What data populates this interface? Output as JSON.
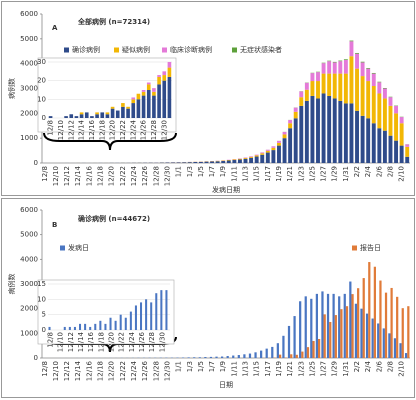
{
  "chart_data": [
    {
      "type": "stacked-bar",
      "label": "A",
      "title": "全部病例 (n=72314)",
      "ylabel": "病例数",
      "xlabel": "发病日期",
      "categories": [
        "12/8",
        null,
        "12/10",
        null,
        "12/12",
        null,
        "12/14",
        null,
        "12/16",
        null,
        "12/18",
        null,
        "12/20",
        null,
        "12/22",
        null,
        "12/24",
        null,
        "12/26",
        null,
        "12/28",
        null,
        "12/30",
        null,
        "1/1",
        null,
        "1/3",
        null,
        "1/5",
        null,
        "1/7",
        null,
        "1/9",
        null,
        "1/11",
        null,
        "1/13",
        null,
        "1/15",
        null,
        "1/17",
        null,
        "1/19",
        null,
        "1/21",
        null,
        "1/23",
        null,
        "1/25",
        null,
        "1/27",
        null,
        "1/29",
        null,
        "1/31",
        null,
        "2/2",
        null,
        "2/4",
        null,
        "2/6",
        null,
        "2/8",
        null,
        "2/10",
        null
      ],
      "ylim": [
        0,
        6000
      ],
      "yticks": [
        0,
        1000,
        2000,
        3000,
        4000,
        5000,
        6000
      ],
      "series": [
        {
          "name": "确诊病例",
          "color": "#2f4b8a",
          "values": [
            1,
            0,
            0,
            1,
            2,
            1,
            2,
            3,
            1,
            2,
            3,
            2,
            5,
            4,
            6,
            5,
            8,
            10,
            12,
            15,
            12,
            18,
            20,
            22,
            25,
            30,
            35,
            40,
            45,
            55,
            60,
            70,
            80,
            100,
            120,
            140,
            170,
            210,
            260,
            330,
            420,
            520,
            700,
            1000,
            1400,
            1800,
            2300,
            2500,
            2700,
            2600,
            2800,
            2700,
            2600,
            2500,
            2400,
            2400,
            2100,
            1900,
            1800,
            1600,
            1400,
            1300,
            1100,
            900,
            700,
            250
          ]
        },
        {
          "name": "疑似病例",
          "color": "#f2b705",
          "values": [
            0,
            0,
            0,
            0,
            0,
            0,
            1,
            0,
            0,
            1,
            0,
            1,
            1,
            0,
            2,
            1,
            2,
            3,
            2,
            3,
            2,
            4,
            3,
            5,
            5,
            6,
            7,
            8,
            10,
            12,
            14,
            16,
            18,
            20,
            25,
            30,
            35,
            40,
            50,
            60,
            70,
            90,
            110,
            150,
            200,
            260,
            350,
            450,
            600,
            700,
            800,
            900,
            1000,
            1100,
            1200,
            1900,
            1700,
            1600,
            1500,
            1500,
            1400,
            1300,
            1200,
            1100,
            900,
            400
          ]
        },
        {
          "name": "临床诊断病例",
          "color": "#e47ad8",
          "values": [
            0,
            0,
            0,
            0,
            0,
            0,
            0,
            0,
            0,
            0,
            0,
            0,
            0,
            0,
            0,
            0,
            1,
            0,
            1,
            1,
            2,
            1,
            2,
            3,
            3,
            3,
            4,
            4,
            5,
            5,
            6,
            7,
            8,
            10,
            12,
            15,
            18,
            22,
            28,
            35,
            45,
            60,
            80,
            100,
            130,
            170,
            230,
            280,
            320,
            360,
            420,
            500,
            450,
            500,
            550,
            600,
            600,
            550,
            500,
            500,
            450,
            400,
            350,
            300,
            250,
            100
          ]
        },
        {
          "name": "无症状感染者",
          "color": "#5da03a",
          "values": [
            0,
            0,
            0,
            0,
            0,
            0,
            0,
            0,
            0,
            0,
            0,
            0,
            0,
            0,
            0,
            0,
            0,
            0,
            0,
            0,
            0,
            0,
            0,
            0,
            0,
            0,
            0,
            0,
            0,
            0,
            0,
            0,
            0,
            0,
            0,
            0,
            0,
            0,
            0,
            1,
            1,
            2,
            3,
            4,
            5,
            6,
            8,
            10,
            12,
            15,
            18,
            20,
            22,
            25,
            28,
            30,
            30,
            28,
            25,
            25,
            22,
            20,
            18,
            15,
            12,
            5
          ]
        }
      ],
      "inset": {
        "categories": [
          "12/8",
          null,
          "12/10",
          null,
          "12/12",
          null,
          "12/14",
          null,
          "12/16",
          null,
          "12/18",
          null,
          "12/20",
          null,
          "12/22",
          null,
          "12/24",
          null,
          "12/26",
          null,
          "12/28",
          null,
          "12/30",
          null
        ],
        "ylim": [
          0,
          30
        ],
        "yticks": [
          0,
          10,
          20,
          30
        ]
      }
    },
    {
      "type": "bar",
      "label": "B",
      "title": "确诊病例 (n=44672)",
      "ylabel": "病例数",
      "xlabel": "日期",
      "categories": [
        "12/8",
        null,
        "12/10",
        null,
        "12/12",
        null,
        "12/14",
        null,
        "12/16",
        null,
        "12/18",
        null,
        "12/20",
        null,
        "12/22",
        null,
        "12/24",
        null,
        "12/26",
        null,
        "12/28",
        null,
        "12/30",
        null,
        "1/1",
        null,
        "1/3",
        null,
        "1/5",
        null,
        "1/7",
        null,
        "1/9",
        null,
        "1/11",
        null,
        "1/13",
        null,
        "1/15",
        null,
        "1/17",
        null,
        "1/19",
        null,
        "1/21",
        null,
        "1/23",
        null,
        "1/25",
        null,
        "1/27",
        null,
        "1/29",
        null,
        "1/31",
        null,
        "2/2",
        null,
        "2/4",
        null,
        "2/6",
        null,
        "2/8",
        null,
        "2/10",
        null
      ],
      "ylim": [
        0,
        6000
      ],
      "yticks": [
        0,
        1000,
        2000,
        3000,
        4000,
        5000,
        6000
      ],
      "series": [
        {
          "name": "发病日",
          "color": "#4a76c2",
          "values": [
            1,
            0,
            0,
            1,
            1,
            1,
            2,
            2,
            1,
            2,
            3,
            2,
            4,
            3,
            5,
            4,
            6,
            8,
            9,
            10,
            9,
            12,
            13,
            13,
            15,
            20,
            25,
            30,
            30,
            40,
            45,
            55,
            60,
            80,
            100,
            120,
            150,
            180,
            230,
            300,
            380,
            450,
            600,
            900,
            1300,
            1700,
            2300,
            2500,
            2400,
            2600,
            2700,
            2600,
            2600,
            2500,
            2600,
            3100,
            2200,
            2000,
            1800,
            1600,
            1400,
            1200,
            1000,
            800,
            600,
            200
          ]
        },
        {
          "name": "报告日",
          "color": "#e07b39",
          "values": [
            0,
            0,
            0,
            0,
            0,
            0,
            0,
            0,
            0,
            0,
            0,
            0,
            0,
            0,
            0,
            0,
            0,
            0,
            0,
            0,
            0,
            0,
            0,
            0,
            0,
            0,
            0,
            0,
            0,
            0,
            0,
            0,
            0,
            0,
            0,
            0,
            0,
            0,
            0,
            5,
            4,
            17,
            136,
            19,
            150,
            130,
            260,
            440,
            690,
            770,
            1770,
            1460,
            1740,
            1980,
            2100,
            2590,
            2830,
            3240,
            3890,
            3700,
            3140,
            2650,
            2840,
            2480,
            2020,
            2100
          ]
        }
      ],
      "inset": {
        "categories": [
          "12/8",
          null,
          "12/10",
          null,
          "12/12",
          null,
          "12/14",
          null,
          "12/16",
          null,
          "12/18",
          null,
          "12/20",
          null,
          "12/22",
          null,
          "12/24",
          null,
          "12/26",
          null,
          "12/28",
          null,
          "12/30",
          null
        ],
        "ylim": [
          0,
          15
        ],
        "yticks": [
          0,
          5,
          10,
          15
        ]
      }
    }
  ]
}
